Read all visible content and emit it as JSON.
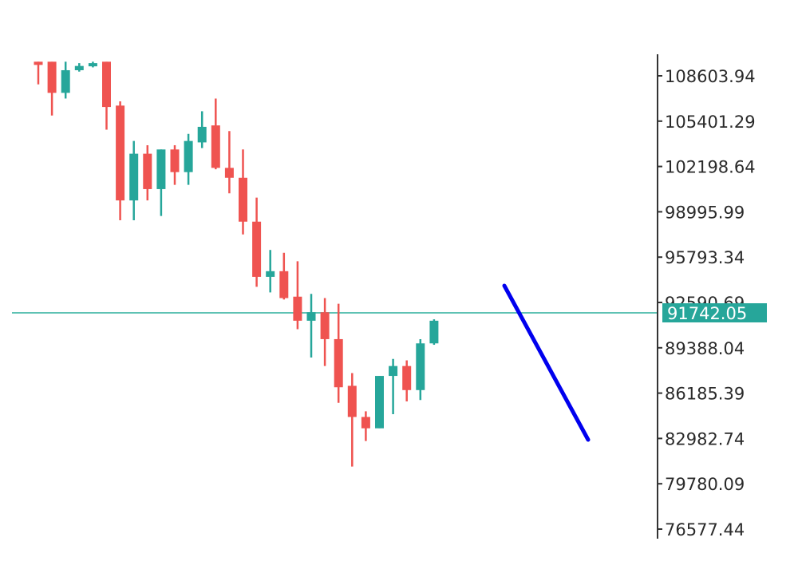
{
  "chart_data": {
    "type": "candlestick",
    "title": "",
    "xlabel": "",
    "ylabel": "",
    "ylim": [
      76577.44,
      108603.94
    ],
    "grid": false,
    "legend": null,
    "colors": {
      "up": "#26a69a",
      "down": "#ef5350",
      "current_price_line": "#5fc2b4",
      "current_price_tag": "#26a69a",
      "trend_line": "#0000ee",
      "axis": "#333333"
    },
    "y_ticks": [
      "108603.94",
      "105401.29",
      "102198.64",
      "98995.99",
      "95793.34",
      "92590.69",
      "89388.04",
      "86185.39",
      "82982.74",
      "79780.09",
      "76577.44"
    ],
    "current_price": {
      "value": 91742.05,
      "label": "91742.05"
    },
    "candles": [
      {
        "i": 1,
        "open": 109600,
        "close": 109600,
        "high": 109600,
        "low": 108000,
        "dir": "down"
      },
      {
        "i": 2,
        "open": 109600,
        "close": 107400,
        "high": 109600,
        "low": 105800,
        "dir": "down"
      },
      {
        "i": 3,
        "open": 107400,
        "close": 109000,
        "high": 109600,
        "low": 107000,
        "dir": "up"
      },
      {
        "i": 4,
        "open": 109000,
        "close": 109300,
        "high": 109500,
        "low": 108900,
        "dir": "up"
      },
      {
        "i": 5,
        "open": 109300,
        "close": 109500,
        "high": 109600,
        "low": 109200,
        "dir": "up"
      },
      {
        "i": 6,
        "open": 109600,
        "close": 106400,
        "high": 109600,
        "low": 104800,
        "dir": "down"
      },
      {
        "i": 7,
        "open": 106500,
        "close": 99800,
        "high": 106800,
        "low": 98400,
        "dir": "down"
      },
      {
        "i": 8,
        "open": 99800,
        "close": 103100,
        "high": 104000,
        "low": 98400,
        "dir": "up"
      },
      {
        "i": 9,
        "open": 103100,
        "close": 100600,
        "high": 103700,
        "low": 99800,
        "dir": "down"
      },
      {
        "i": 10,
        "open": 100600,
        "close": 103400,
        "high": 103400,
        "low": 98700,
        "dir": "up"
      },
      {
        "i": 11,
        "open": 103400,
        "close": 101800,
        "high": 103700,
        "low": 100900,
        "dir": "down"
      },
      {
        "i": 12,
        "open": 101800,
        "close": 104000,
        "high": 104500,
        "low": 100900,
        "dir": "up"
      },
      {
        "i": 13,
        "open": 103900,
        "close": 105000,
        "high": 106100,
        "low": 103500,
        "dir": "up"
      },
      {
        "i": 14,
        "open": 105100,
        "close": 102100,
        "high": 107000,
        "low": 102000,
        "dir": "down"
      },
      {
        "i": 15,
        "open": 102100,
        "close": 101400,
        "high": 104700,
        "low": 100300,
        "dir": "down"
      },
      {
        "i": 16,
        "open": 101400,
        "close": 98300,
        "high": 103400,
        "low": 97400,
        "dir": "down"
      },
      {
        "i": 17,
        "open": 98300,
        "close": 94400,
        "high": 100000,
        "low": 93700,
        "dir": "down"
      },
      {
        "i": 18,
        "open": 94400,
        "close": 94800,
        "high": 96300,
        "low": 93300,
        "dir": "up"
      },
      {
        "i": 19,
        "open": 94800,
        "close": 92900,
        "high": 96100,
        "low": 92800,
        "dir": "down"
      },
      {
        "i": 20,
        "open": 93000,
        "close": 91300,
        "high": 95500,
        "low": 90700,
        "dir": "down"
      },
      {
        "i": 21,
        "open": 91300,
        "close": 91900,
        "high": 93200,
        "low": 88700,
        "dir": "up"
      },
      {
        "i": 22,
        "open": 91900,
        "close": 90000,
        "high": 92900,
        "low": 88100,
        "dir": "down"
      },
      {
        "i": 23,
        "open": 90000,
        "close": 86600,
        "high": 92500,
        "low": 85500,
        "dir": "down"
      },
      {
        "i": 24,
        "open": 86700,
        "close": 84500,
        "high": 87600,
        "low": 81000,
        "dir": "down"
      },
      {
        "i": 25,
        "open": 84500,
        "close": 83700,
        "high": 84900,
        "low": 82800,
        "dir": "down"
      },
      {
        "i": 26,
        "open": 83700,
        "close": 87400,
        "high": 87400,
        "low": 83700,
        "dir": "up"
      },
      {
        "i": 27,
        "open": 87400,
        "close": 88100,
        "high": 88600,
        "low": 84700,
        "dir": "up"
      },
      {
        "i": 28,
        "open": 88100,
        "close": 86400,
        "high": 88500,
        "low": 85600,
        "dir": "down"
      },
      {
        "i": 29,
        "open": 86400,
        "close": 89700,
        "high": 90000,
        "low": 85700,
        "dir": "up"
      },
      {
        "i": 30,
        "open": 89700,
        "close": 91300,
        "high": 91400,
        "low": 89600,
        "dir": "up"
      }
    ],
    "annotations": [
      {
        "type": "trend_line",
        "from_price": 92900,
        "to_price": 82800,
        "color": "#0000ee"
      }
    ]
  }
}
